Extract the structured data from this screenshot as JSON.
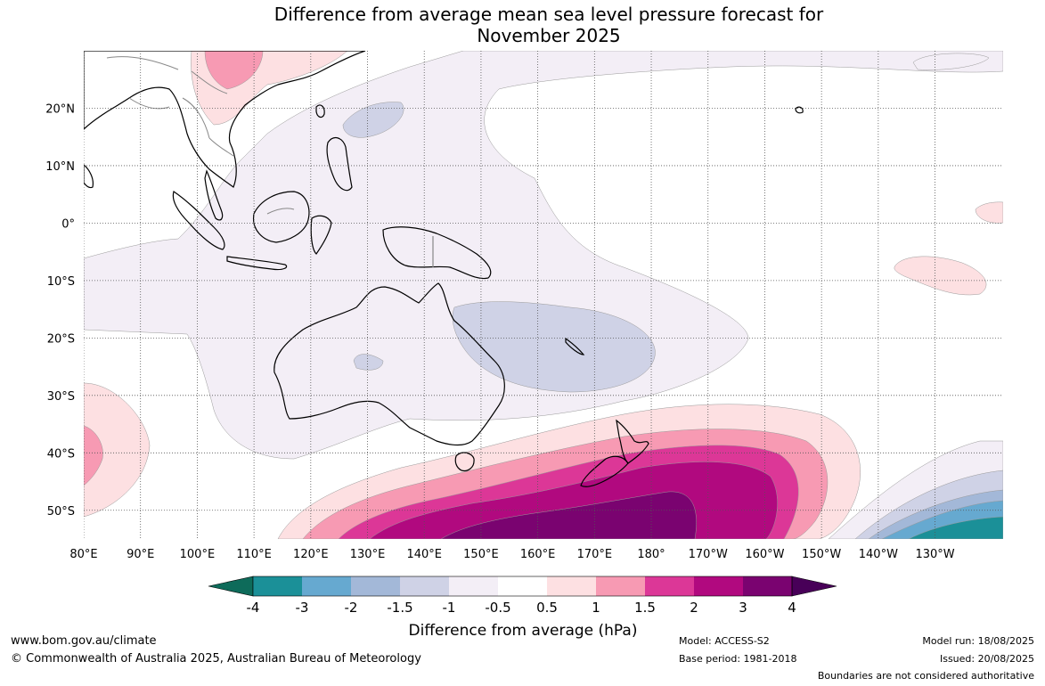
{
  "title": {
    "line1": "Difference from average mean sea level pressure forecast for",
    "line2": "November 2025"
  },
  "map": {
    "lon_range": [
      80,
      242
    ],
    "lat_range": [
      -55,
      30
    ],
    "lat_ticks": [
      {
        "value": 20,
        "label": "20°N"
      },
      {
        "value": 10,
        "label": "10°N"
      },
      {
        "value": 0,
        "label": "0°"
      },
      {
        "value": -10,
        "label": "10°S"
      },
      {
        "value": -20,
        "label": "20°S"
      },
      {
        "value": -30,
        "label": "30°S"
      },
      {
        "value": -40,
        "label": "40°S"
      },
      {
        "value": -50,
        "label": "50°S"
      }
    ],
    "lon_ticks": [
      {
        "value": 80,
        "label": "80°E"
      },
      {
        "value": 90,
        "label": "90°E"
      },
      {
        "value": 100,
        "label": "100°E"
      },
      {
        "value": 110,
        "label": "110°E"
      },
      {
        "value": 120,
        "label": "120°E"
      },
      {
        "value": 130,
        "label": "130°E"
      },
      {
        "value": 140,
        "label": "140°E"
      },
      {
        "value": 150,
        "label": "150°E"
      },
      {
        "value": 160,
        "label": "160°E"
      },
      {
        "value": 170,
        "label": "170°E"
      },
      {
        "value": 180,
        "label": "180°"
      },
      {
        "value": 190,
        "label": "170°W"
      },
      {
        "value": 200,
        "label": "160°W"
      },
      {
        "value": 210,
        "label": "150°W"
      },
      {
        "value": 220,
        "label": "140°W"
      },
      {
        "value": 230,
        "label": "130°W"
      }
    ],
    "grid": true
  },
  "colorbar": {
    "title": "Difference from average (hPa)",
    "labels": [
      "-4",
      "-3",
      "-2",
      "-1.5",
      "-1",
      "-0.5",
      "0.5",
      "1",
      "1.5",
      "2",
      "3",
      "4"
    ],
    "colors": [
      "#0e6b5a",
      "#1b9098",
      "#66a9d0",
      "#a3b8d8",
      "#cfd2e6",
      "#f3eef6",
      "#ffffff",
      "#fde0e2",
      "#f79ab3",
      "#dc3797",
      "#b1097f",
      "#7a0370",
      "#480058"
    ]
  },
  "footer": {
    "url": "www.bom.gov.au/climate",
    "copyright": "© Commonwealth of Australia 2025, Australian Bureau of Meteorology",
    "model": "Model: ACCESS-S2",
    "base_period": "Base period: 1981-2018",
    "model_run": "Model run: 18/08/2025",
    "issued": "Issued: 20/08/2025",
    "disclaimer": "Boundaries are not considered authoritative"
  }
}
